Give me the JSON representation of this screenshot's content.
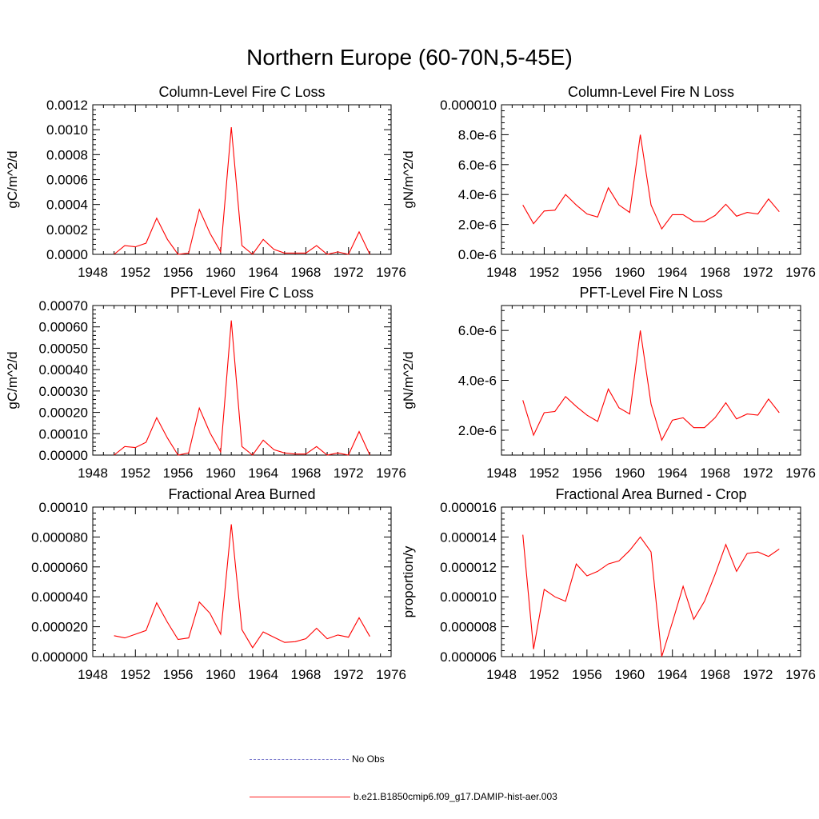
{
  "title": "Northern Europe (60-70N,5-45E)",
  "legend": {
    "no_obs": "No Obs",
    "model": "b.e21.B1850cmip6.f09_g17.DAMIP-hist-aer.003",
    "no_obs_color": "#6f6fc8",
    "model_color": "#ff0000"
  },
  "chart_data": [
    {
      "type": "line",
      "title": "Column-Level Fire C Loss",
      "ylabel": "gC/m^2/d",
      "xlim": [
        1948,
        1976
      ],
      "ylim": [
        0,
        0.0012
      ],
      "x_ticks": [
        "1948",
        "1952",
        "1956",
        "1960",
        "1964",
        "1968",
        "1972",
        "1976"
      ],
      "y_ticks": [
        "0.0000",
        "0.0002",
        "0.0004",
        "0.0006",
        "0.0008",
        "0.0010",
        "0.0012"
      ],
      "x": [
        1950,
        1951,
        1952,
        1953,
        1954,
        1955,
        1956,
        1957,
        1958,
        1959,
        1960,
        1961,
        1962,
        1963,
        1964,
        1965,
        1966,
        1967,
        1968,
        1969,
        1970,
        1971,
        1972,
        1973,
        1974
      ],
      "series": [
        {
          "color": "#ff0000",
          "values": [
            0.0,
            7e-05,
            6e-05,
            9e-05,
            0.00029,
            0.00012,
            0.0,
            1e-05,
            0.00036,
            0.00017,
            2e-05,
            0.00102,
            7e-05,
            0.0,
            0.00012,
            4e-05,
            1e-05,
            1e-05,
            1e-05,
            7e-05,
            0.0,
            2e-05,
            0.0,
            0.00018,
            0.0
          ]
        }
      ]
    },
    {
      "type": "line",
      "title": "Column-Level Fire N Loss",
      "ylabel": "gN/m^2/d",
      "xlim": [
        1948,
        1976
      ],
      "ylim": [
        0,
        1e-05
      ],
      "x_ticks": [
        "1948",
        "1952",
        "1956",
        "1960",
        "1964",
        "1968",
        "1972",
        "1976"
      ],
      "y_ticks": [
        "0.0e-6",
        "2.0e-6",
        "4.0e-6",
        "6.0e-6",
        "8.0e-6",
        "0.000010"
      ],
      "x": [
        1950,
        1951,
        1952,
        1953,
        1954,
        1955,
        1956,
        1957,
        1958,
        1959,
        1960,
        1961,
        1962,
        1963,
        1964,
        1965,
        1966,
        1967,
        1968,
        1969,
        1970,
        1971,
        1972,
        1973,
        1974
      ],
      "series": [
        {
          "color": "#ff0000",
          "values": [
            3.3e-06,
            2.05e-06,
            2.9e-06,
            2.95e-06,
            4e-06,
            3.3e-06,
            2.7e-06,
            2.5e-06,
            4.45e-06,
            3.3e-06,
            2.8e-06,
            8e-06,
            3.3e-06,
            1.7e-06,
            2.65e-06,
            2.65e-06,
            2.2e-06,
            2.2e-06,
            2.6e-06,
            3.35e-06,
            2.55e-06,
            2.8e-06,
            2.7e-06,
            3.7e-06,
            2.85e-06
          ]
        }
      ]
    },
    {
      "type": "line",
      "title": "PFT-Level Fire C Loss",
      "ylabel": "gC/m^2/d",
      "xlim": [
        1948,
        1976
      ],
      "ylim": [
        0,
        0.0007
      ],
      "x_ticks": [
        "1948",
        "1952",
        "1956",
        "1960",
        "1964",
        "1968",
        "1972",
        "1976"
      ],
      "y_ticks": [
        "0.00000",
        "0.00010",
        "0.00020",
        "0.00030",
        "0.00040",
        "0.00050",
        "0.00060",
        "0.00070"
      ],
      "x": [
        1950,
        1951,
        1952,
        1953,
        1954,
        1955,
        1956,
        1957,
        1958,
        1959,
        1960,
        1961,
        1962,
        1963,
        1964,
        1965,
        1966,
        1967,
        1968,
        1969,
        1970,
        1971,
        1972,
        1973,
        1974
      ],
      "series": [
        {
          "color": "#ff0000",
          "values": [
            0.0,
            4e-05,
            3.5e-05,
            6e-05,
            0.000175,
            8e-05,
            0.0,
            1e-05,
            0.00022,
            0.000105,
            1.5e-05,
            0.00063,
            4e-05,
            0.0,
            7e-05,
            2.5e-05,
            1e-05,
            5e-06,
            5e-06,
            4e-05,
            0.0,
            1e-05,
            0.0,
            0.00011,
            0.0
          ]
        }
      ]
    },
    {
      "type": "line",
      "title": "PFT-Level Fire N Loss",
      "ylabel": "gN/m^2/d",
      "xlim": [
        1948,
        1976
      ],
      "ylim": [
        1e-06,
        7e-06
      ],
      "x_ticks": [
        "1948",
        "1952",
        "1956",
        "1960",
        "1964",
        "1968",
        "1972",
        "1976"
      ],
      "y_ticks": [
        "2.0e-6",
        "4.0e-6",
        "6.0e-6"
      ],
      "y_tick_values": [
        2e-06,
        4e-06,
        6e-06
      ],
      "x": [
        1950,
        1951,
        1952,
        1953,
        1954,
        1955,
        1956,
        1957,
        1958,
        1959,
        1960,
        1961,
        1962,
        1963,
        1964,
        1965,
        1966,
        1967,
        1968,
        1969,
        1970,
        1971,
        1972,
        1973,
        1974
      ],
      "series": [
        {
          "color": "#ff0000",
          "values": [
            3.2e-06,
            1.8e-06,
            2.7e-06,
            2.75e-06,
            3.35e-06,
            2.95e-06,
            2.6e-06,
            2.35e-06,
            3.65e-06,
            2.9e-06,
            2.65e-06,
            6e-06,
            3.05e-06,
            1.6e-06,
            2.4e-06,
            2.5e-06,
            2.1e-06,
            2.1e-06,
            2.5e-06,
            3.1e-06,
            2.45e-06,
            2.65e-06,
            2.6e-06,
            3.25e-06,
            2.7e-06
          ]
        }
      ]
    },
    {
      "type": "line",
      "title": "Fractional Area Burned",
      "ylabel": "",
      "xlim": [
        1948,
        1976
      ],
      "ylim": [
        0,
        0.0001
      ],
      "x_ticks": [
        "1948",
        "1952",
        "1956",
        "1960",
        "1964",
        "1968",
        "1972",
        "1976"
      ],
      "y_ticks": [
        "0.000000",
        "0.000020",
        "0.000040",
        "0.000060",
        "0.000080",
        "0.00010"
      ],
      "x": [
        1950,
        1951,
        1952,
        1953,
        1954,
        1955,
        1956,
        1957,
        1958,
        1959,
        1960,
        1961,
        1962,
        1963,
        1964,
        1965,
        1966,
        1967,
        1968,
        1969,
        1970,
        1971,
        1972,
        1973,
        1974
      ],
      "series": [
        {
          "color": "#ff0000",
          "values": [
            1.4e-05,
            1.25e-05,
            1.5e-05,
            1.75e-05,
            3.6e-05,
            2.3e-05,
            1.15e-05,
            1.25e-05,
            3.65e-05,
            2.9e-05,
            1.5e-05,
            8.85e-05,
            1.8e-05,
            6e-06,
            1.65e-05,
            1.3e-05,
            9.5e-06,
            1e-05,
            1.2e-05,
            1.9e-05,
            1.2e-05,
            1.45e-05,
            1.3e-05,
            2.6e-05,
            1.35e-05
          ]
        }
      ]
    },
    {
      "type": "line",
      "title": "Fractional Area Burned - Crop",
      "ylabel": "proportion/y",
      "xlim": [
        1948,
        1976
      ],
      "ylim": [
        6e-06,
        1.6e-05
      ],
      "x_ticks": [
        "1948",
        "1952",
        "1956",
        "1960",
        "1964",
        "1968",
        "1972",
        "1976"
      ],
      "y_ticks": [
        "0.000006",
        "0.000008",
        "0.000010",
        "0.000012",
        "0.000014",
        "0.000016"
      ],
      "y_tick_values": [
        6e-06,
        8e-06,
        1e-05,
        1.2e-05,
        1.4e-05,
        1.6e-05
      ],
      "x": [
        1950,
        1951,
        1952,
        1953,
        1954,
        1955,
        1956,
        1957,
        1958,
        1959,
        1960,
        1961,
        1962,
        1963,
        1964,
        1965,
        1966,
        1967,
        1968,
        1969,
        1970,
        1971,
        1972,
        1973,
        1974
      ],
      "series": [
        {
          "color": "#ff0000",
          "values": [
            1.415e-05,
            6.5e-06,
            1.05e-05,
            1e-05,
            9.7e-06,
            1.22e-05,
            1.14e-05,
            1.17e-05,
            1.22e-05,
            1.24e-05,
            1.31e-05,
            1.4e-05,
            1.3e-05,
            6e-06,
            8.3e-06,
            1.07e-05,
            8.5e-06,
            9.7e-06,
            1.15e-05,
            1.35e-05,
            1.17e-05,
            1.29e-05,
            1.3e-05,
            1.27e-05,
            1.32e-05
          ]
        }
      ]
    }
  ]
}
